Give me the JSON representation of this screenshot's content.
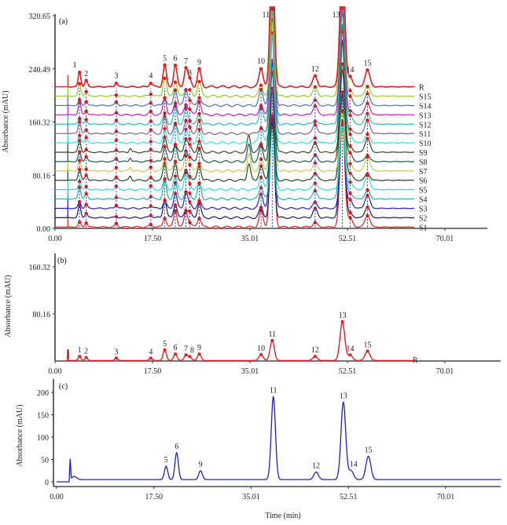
{
  "chart_data": [
    {
      "type": "line",
      "panel_label": "(a)",
      "ylabel": "Absorbance (mAU)",
      "xlabel": "",
      "xlim": [
        0,
        77.5
      ],
      "ylim": [
        0,
        320.65
      ],
      "xticks": [
        "0.00",
        "17.50",
        "35.01",
        "52.51",
        "70.01"
      ],
      "yticks": [
        "0.00",
        "80.16",
        "160.32",
        "240.49",
        "320.65"
      ],
      "grid": false,
      "traces": [
        "S1",
        "S2",
        "S3",
        "S4",
        "S5",
        "S6",
        "S7",
        "S8",
        "S9",
        "S10",
        "S11",
        "S12",
        "S13",
        "S14",
        "S15",
        "R"
      ],
      "trace_colors": [
        "#e02020",
        "#1a1a6e",
        "#2020c0",
        "#20b0b0",
        "#30d8d8",
        "#1f4a1f",
        "#c8c850",
        "#1f5a50",
        "#304a20",
        "#30e0e0",
        "#806080",
        "#20c0b0",
        "#c020c0",
        "#5070b0",
        "#90d020",
        "#e02020"
      ],
      "peaks": {
        "labels": [
          "1",
          "2",
          "3",
          "4",
          "5",
          "6",
          "7",
          "8",
          "9",
          "10",
          "11",
          "12",
          "13",
          "14",
          "15"
        ],
        "time_min": [
          4.4,
          5.6,
          11.0,
          17.2,
          19.7,
          21.6,
          23.5,
          24.2,
          25.9,
          37.0,
          39.0,
          46.7,
          51.6,
          53.0,
          56.1
        ],
        "reference_height_mAU": [
          22,
          9,
          6,
          6,
          32,
          32,
          28,
          10,
          26,
          28,
          220,
          16,
          200,
          15,
          25
        ]
      }
    },
    {
      "type": "line",
      "panel_label": "(b)",
      "ylabel": "Absorbance (mAU)",
      "xlabel": "",
      "series_label": "R",
      "xlim": [
        0,
        77.5
      ],
      "ylim": [
        0,
        160.32
      ],
      "xticks": [
        "0.00",
        "17.50",
        "35.01",
        "52.51",
        "70.01"
      ],
      "yticks": [
        "80.16",
        "160.32"
      ],
      "grid": false,
      "color": "#e02020",
      "peaks": {
        "labels": [
          "1",
          "2",
          "3",
          "4",
          "5",
          "6",
          "7",
          "8",
          "9",
          "10",
          "11",
          "12",
          "13",
          "14",
          "15"
        ],
        "time_min": [
          4.4,
          5.6,
          11.0,
          17.2,
          19.7,
          21.6,
          23.5,
          24.2,
          25.9,
          37.0,
          39.0,
          46.7,
          51.6,
          53.0,
          56.1
        ],
        "height_mAU": [
          7,
          5,
          4,
          4,
          18,
          11,
          9,
          6,
          11,
          10,
          34,
          7,
          66,
          9,
          16
        ]
      }
    },
    {
      "type": "line",
      "panel_label": "(c)",
      "ylabel": "Absorbance (mAU)",
      "xlabel": "Time (min)",
      "xlim": [
        0,
        77.5
      ],
      "ylim": [
        -10,
        230
      ],
      "xticks": [
        "0.00",
        "17.50",
        "35.01",
        "52.51",
        "70.01"
      ],
      "yticks": [
        "0",
        "50",
        "100",
        "150",
        "200"
      ],
      "grid": false,
      "color": "#2020c0",
      "baseline_mAU": 5,
      "peaks": {
        "labels": [
          "5",
          "6",
          "9",
          "11",
          "12",
          "13",
          "14",
          "15"
        ],
        "time_min": [
          19.7,
          21.6,
          25.9,
          39.0,
          46.7,
          51.6,
          53.0,
          56.1
        ],
        "height_mAU": [
          30,
          60,
          20,
          185,
          17,
          173,
          20,
          52
        ]
      }
    }
  ]
}
